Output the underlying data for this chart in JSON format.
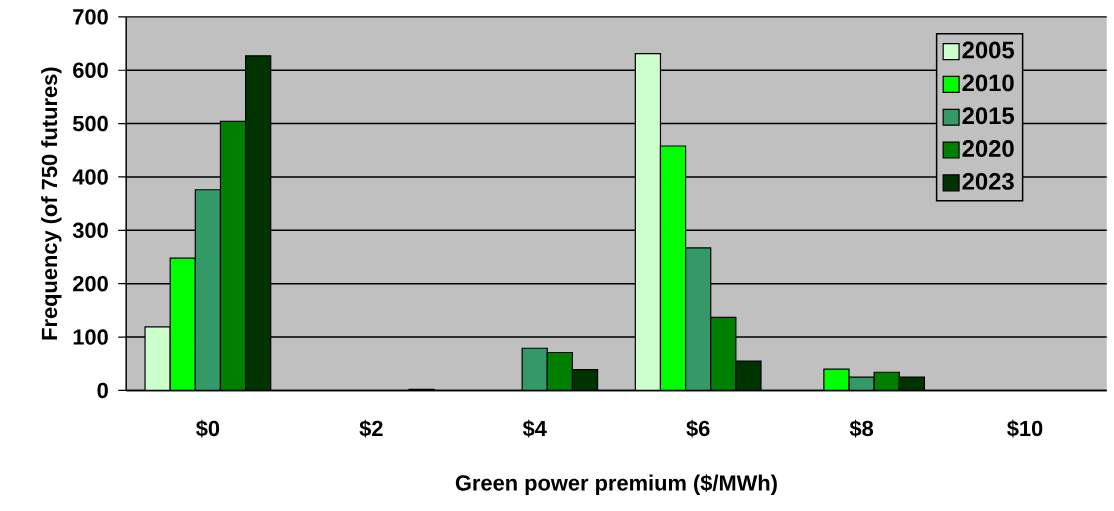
{
  "chart_data": {
    "type": "bar",
    "xlabel": "Green power premium ($/MWh)",
    "ylabel": "Frequency (of 750 futures)",
    "categories": [
      "$0",
      "$2",
      "$4",
      "$6",
      "$8",
      "$10"
    ],
    "series": [
      {
        "name": "2005",
        "color": "#ccffcc",
        "values": [
          119,
          null,
          null,
          631,
          null,
          null
        ]
      },
      {
        "name": "2010",
        "color": "#00ff00",
        "values": [
          248,
          null,
          null,
          458,
          40,
          null
        ]
      },
      {
        "name": "2015",
        "color": "#339966",
        "values": [
          376,
          null,
          79,
          267,
          25,
          null
        ]
      },
      {
        "name": "2020",
        "color": "#008000",
        "values": [
          504,
          null,
          71,
          137,
          34,
          null
        ]
      },
      {
        "name": "2023",
        "color": "#003300",
        "values": [
          627,
          2,
          39,
          55,
          25,
          null
        ]
      }
    ],
    "ylim": [
      0,
      700
    ],
    "yticks": [
      0,
      100,
      200,
      300,
      400,
      500,
      600,
      700
    ],
    "grid": "y",
    "legend": "top right"
  }
}
